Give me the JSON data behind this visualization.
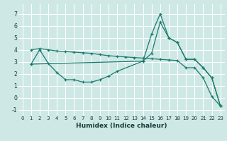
{
  "xlabel": "Humidex (Indice chaleur)",
  "bg_color": "#cde8e5",
  "grid_color": "#ffffff",
  "line_color": "#1a7a6e",
  "xlim": [
    -0.5,
    23.5
  ],
  "ylim": [
    -1.5,
    7.8
  ],
  "xticks": [
    0,
    1,
    2,
    3,
    4,
    5,
    6,
    7,
    8,
    9,
    10,
    11,
    12,
    13,
    14,
    15,
    16,
    17,
    18,
    19,
    20,
    21,
    22,
    23
  ],
  "yticks": [
    -1,
    0,
    1,
    2,
    3,
    4,
    5,
    6,
    7
  ],
  "line1_x": [
    1,
    2,
    3,
    4,
    5,
    6,
    7,
    8,
    9,
    10,
    11,
    12,
    13,
    14,
    15,
    16,
    17,
    18,
    19,
    20,
    21,
    22,
    23
  ],
  "line1_y": [
    4.0,
    4.1,
    4.0,
    3.9,
    3.85,
    3.8,
    3.75,
    3.7,
    3.6,
    3.5,
    3.45,
    3.4,
    3.35,
    3.3,
    3.25,
    3.2,
    3.15,
    3.1,
    2.5,
    2.5,
    1.65,
    0.1,
    -0.7
  ],
  "line2_x": [
    1,
    2,
    3,
    4,
    5,
    6,
    7,
    8,
    9,
    10,
    11,
    14,
    15,
    16,
    17,
    18,
    19,
    20,
    21,
    22,
    23
  ],
  "line2_y": [
    2.8,
    4.0,
    2.85,
    2.1,
    1.5,
    1.5,
    1.3,
    1.3,
    1.5,
    1.8,
    2.2,
    3.05,
    3.7,
    6.3,
    5.0,
    4.6,
    3.2,
    3.2,
    2.5,
    1.65,
    -0.7
  ],
  "line3_x": [
    1,
    14,
    15,
    16,
    17,
    18,
    19,
    20,
    21,
    22,
    23
  ],
  "line3_y": [
    2.8,
    3.05,
    5.3,
    7.0,
    5.0,
    4.6,
    3.2,
    3.2,
    2.5,
    1.65,
    -0.7
  ]
}
